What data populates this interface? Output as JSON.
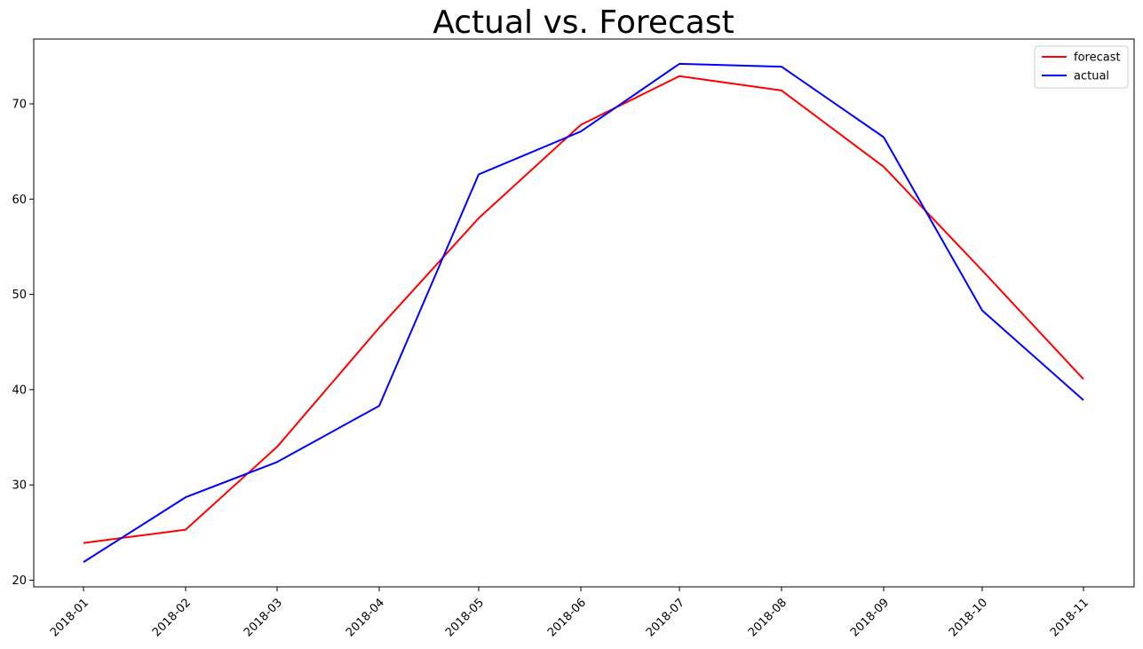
{
  "chart_data": {
    "type": "line",
    "title": "Actual vs. Forecast",
    "xlabel": "",
    "ylabel": "",
    "x": [
      "2018-01",
      "2018-02",
      "2018-03",
      "2018-04",
      "2018-05",
      "2018-06",
      "2018-07",
      "2018-08",
      "2018-09",
      "2018-10",
      "2018-11"
    ],
    "series": [
      {
        "name": "forecast",
        "color": "#ff0000",
        "values": [
          23.9,
          25.3,
          34.0,
          46.5,
          58.0,
          67.8,
          72.9,
          71.4,
          63.4,
          52.5,
          41.1
        ]
      },
      {
        "name": "actual",
        "color": "#0000ff",
        "values": [
          21.9,
          28.7,
          32.4,
          38.3,
          62.6,
          67.1,
          74.2,
          73.9,
          66.5,
          48.3,
          38.9
        ]
      }
    ],
    "ylim": [
      19.3,
      76.8
    ],
    "yticks": [
      20,
      30,
      40,
      50,
      60,
      70
    ],
    "grid": false,
    "legend_position": "top-right"
  }
}
